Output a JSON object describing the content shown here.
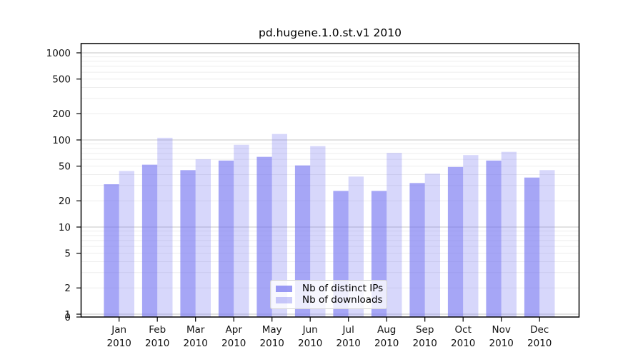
{
  "title": "pd.hugene.1.0.st.v1 2010",
  "chart_data": {
    "type": "bar",
    "y_scale": "log",
    "title": "pd.hugene.1.0.st.v1 2010",
    "categories": [
      "Jan",
      "Feb",
      "Mar",
      "Apr",
      "May",
      "Jun",
      "Jul",
      "Aug",
      "Sep",
      "Oct",
      "Nov",
      "Dec"
    ],
    "category_year": "2010",
    "series": [
      {
        "name": "Nb of distinct IPs",
        "color": "#7070f0",
        "fill_opacity": 0.62,
        "values": [
          31,
          52,
          45,
          58,
          64,
          51,
          26,
          26,
          32,
          49,
          58,
          37
        ]
      },
      {
        "name": "Nb of downloads",
        "color": "#7070f0",
        "fill_opacity": 0.28,
        "values": [
          44,
          106,
          60,
          88,
          117,
          85,
          38,
          71,
          41,
          67,
          73,
          45
        ]
      }
    ],
    "y_tick_values": [
      0,
      1,
      2,
      5,
      10,
      20,
      50,
      100,
      200,
      500,
      1000
    ],
    "y_tick_labels": [
      "0",
      "1",
      "2",
      "5",
      "10",
      "20",
      "50",
      "100",
      "200",
      "500",
      "1000"
    ],
    "ylim": [
      0,
      1275
    ],
    "xlabel": "",
    "ylabel": "",
    "grid": "on",
    "legend_position": "bottom-center",
    "colors": {
      "grid_major": "#c6c6c6",
      "grid_minor": "#ededed",
      "axis": "#000000",
      "tick_text": "#111111"
    }
  }
}
